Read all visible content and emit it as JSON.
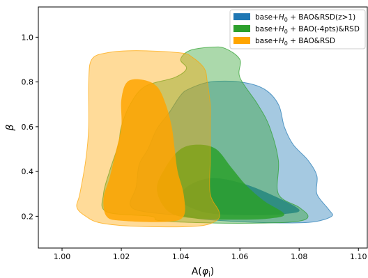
{
  "chart_data": {
    "type": "area",
    "subtype": "2D posterior confidence contours (68% and 95%)",
    "title": "",
    "xlabel": "A(φ_i)",
    "xlabel_parts": {
      "main": "A(",
      "phi": "φ",
      "sub": "i",
      "close": ")"
    },
    "ylabel": "β",
    "xlim": [
      0.992,
      1.103
    ],
    "ylim": [
      0.058,
      1.135
    ],
    "xticks": [
      1.0,
      1.02,
      1.04,
      1.06,
      1.08,
      1.1
    ],
    "xtick_labels": [
      "1.00",
      "1.02",
      "1.04",
      "1.06",
      "1.08",
      "1.10"
    ],
    "yticks": [
      0.2,
      0.4,
      0.6,
      0.8,
      1.0
    ],
    "ytick_labels": [
      "0.2",
      "0.4",
      "0.6",
      "0.8",
      "1.0"
    ],
    "grid": false,
    "legend_position": "top-right",
    "series": [
      {
        "name": "base+H0 + BAO&RSD(z>1)",
        "legend_label": {
          "pre": "base+",
          "sym": "H",
          "sub": "0",
          "post": " + BAO&RSD(z>1)"
        },
        "color": "#1f77b4",
        "contour_95": [
          [
            1.043,
            0.2
          ],
          [
            1.047,
            0.188
          ],
          [
            1.06,
            0.176
          ],
          [
            1.075,
            0.17
          ],
          [
            1.085,
            0.175
          ],
          [
            1.091,
            0.2
          ],
          [
            1.09,
            0.23
          ],
          [
            1.086,
            0.3
          ],
          [
            1.086,
            0.38
          ],
          [
            1.083,
            0.45
          ],
          [
            1.078,
            0.52
          ],
          [
            1.075,
            0.6
          ],
          [
            1.073,
            0.7
          ],
          [
            1.068,
            0.77
          ],
          [
            1.06,
            0.8
          ],
          [
            1.05,
            0.8
          ],
          [
            1.043,
            0.77
          ],
          [
            1.04,
            0.74
          ],
          [
            1.036,
            0.66
          ],
          [
            1.032,
            0.59
          ],
          [
            1.029,
            0.5
          ],
          [
            1.026,
            0.43
          ],
          [
            1.025,
            0.33
          ],
          [
            1.023,
            0.25
          ],
          [
            1.028,
            0.22
          ]
        ],
        "contour_68": [
          [
            1.045,
            0.23
          ],
          [
            1.052,
            0.21
          ],
          [
            1.065,
            0.205
          ],
          [
            1.075,
            0.21
          ],
          [
            1.08,
            0.23
          ],
          [
            1.07,
            0.3
          ],
          [
            1.06,
            0.35
          ],
          [
            1.05,
            0.37
          ],
          [
            1.042,
            0.33
          ],
          [
            1.04,
            0.27
          ]
        ]
      },
      {
        "name": "base+H0 + BAO(-4pts)&RSD",
        "legend_label": {
          "pre": "base+",
          "sym": "H",
          "sub": "0",
          "post": " + BAO(-4pts)&RSD"
        },
        "color": "#2ca02c",
        "contour_95": [
          [
            1.03,
            0.2
          ],
          [
            1.033,
            0.18
          ],
          [
            1.05,
            0.17
          ],
          [
            1.07,
            0.17
          ],
          [
            1.08,
            0.178
          ],
          [
            1.083,
            0.2
          ],
          [
            1.08,
            0.24
          ],
          [
            1.073,
            0.3
          ],
          [
            1.073,
            0.45
          ],
          [
            1.07,
            0.6
          ],
          [
            1.066,
            0.7
          ],
          [
            1.06,
            0.82
          ],
          [
            1.06,
            0.9
          ],
          [
            1.055,
            0.95
          ],
          [
            1.05,
            0.955
          ],
          [
            1.043,
            0.94
          ],
          [
            1.04,
            0.9
          ],
          [
            1.042,
            0.86
          ],
          [
            1.038,
            0.82
          ],
          [
            1.028,
            0.78
          ],
          [
            1.023,
            0.7
          ],
          [
            1.02,
            0.6
          ],
          [
            1.019,
            0.52
          ],
          [
            1.016,
            0.4
          ],
          [
            1.014,
            0.3
          ],
          [
            1.015,
            0.22
          ]
        ],
        "contour_68": [
          [
            1.036,
            0.22
          ],
          [
            1.045,
            0.19
          ],
          [
            1.06,
            0.185
          ],
          [
            1.07,
            0.19
          ],
          [
            1.075,
            0.21
          ],
          [
            1.068,
            0.27
          ],
          [
            1.062,
            0.34
          ],
          [
            1.057,
            0.42
          ],
          [
            1.052,
            0.5
          ],
          [
            1.046,
            0.52
          ],
          [
            1.04,
            0.5
          ],
          [
            1.035,
            0.42
          ],
          [
            1.032,
            0.32
          ]
        ]
      },
      {
        "name": "base+H0 + BAO&RSD",
        "legend_label": {
          "pre": "base+",
          "sym": "H",
          "sub": "0",
          "post": " + BAO&RSD"
        },
        "color": "#ffa500",
        "contour_95": [
          [
            1.008,
            0.2
          ],
          [
            1.013,
            0.17
          ],
          [
            1.025,
            0.155
          ],
          [
            1.045,
            0.155
          ],
          [
            1.052,
            0.18
          ],
          [
            1.053,
            0.22
          ],
          [
            1.05,
            0.3
          ],
          [
            1.05,
            0.45
          ],
          [
            1.05,
            0.6
          ],
          [
            1.05,
            0.7
          ],
          [
            1.049,
            0.8
          ],
          [
            1.048,
            0.86
          ],
          [
            1.044,
            0.91
          ],
          [
            1.04,
            0.93
          ],
          [
            1.025,
            0.94
          ],
          [
            1.015,
            0.93
          ],
          [
            1.01,
            0.9
          ],
          [
            1.009,
            0.8
          ],
          [
            1.009,
            0.6
          ],
          [
            1.008,
            0.45
          ],
          [
            1.006,
            0.3
          ],
          [
            1.005,
            0.24
          ]
        ],
        "contour_68": [
          [
            1.015,
            0.2
          ],
          [
            1.02,
            0.18
          ],
          [
            1.035,
            0.175
          ],
          [
            1.041,
            0.2
          ],
          [
            1.041,
            0.3
          ],
          [
            1.039,
            0.4
          ],
          [
            1.038,
            0.5
          ],
          [
            1.037,
            0.6
          ],
          [
            1.035,
            0.7
          ],
          [
            1.032,
            0.78
          ],
          [
            1.027,
            0.81
          ],
          [
            1.022,
            0.8
          ],
          [
            1.02,
            0.72
          ],
          [
            1.02,
            0.6
          ],
          [
            1.018,
            0.48
          ],
          [
            1.016,
            0.37
          ],
          [
            1.014,
            0.28
          ]
        ]
      }
    ]
  }
}
